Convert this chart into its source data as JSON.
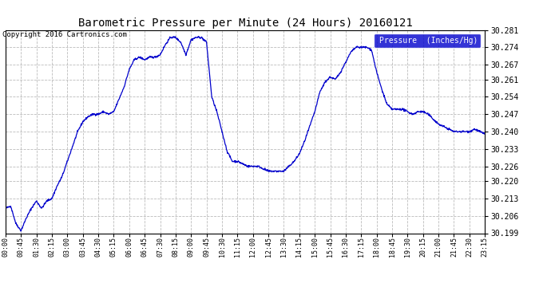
{
  "title": "Barometric Pressure per Minute (24 Hours) 20160121",
  "copyright": "Copyright 2016 Cartronics.com",
  "legend_label": "Pressure  (Inches/Hg)",
  "ylabel_ticks": [
    30.199,
    30.206,
    30.213,
    30.22,
    30.226,
    30.233,
    30.24,
    30.247,
    30.254,
    30.261,
    30.267,
    30.274,
    30.281
  ],
  "ylim": [
    30.199,
    30.281
  ],
  "line_color": "#0000cc",
  "bg_color": "#ffffff",
  "grid_color": "#bbbbbb",
  "title_color": "#000000",
  "copyright_color": "#000000",
  "legend_bg": "#0000cc",
  "legend_text_color": "#ffffff",
  "x_tick_interval_minutes": 45,
  "total_minutes": 1395,
  "keypoints": [
    [
      0,
      30.209
    ],
    [
      15,
      30.21
    ],
    [
      30,
      30.203
    ],
    [
      45,
      30.2
    ],
    [
      60,
      30.205
    ],
    [
      75,
      30.209
    ],
    [
      90,
      30.212
    ],
    [
      105,
      30.209
    ],
    [
      120,
      30.212
    ],
    [
      135,
      30.213
    ],
    [
      150,
      30.218
    ],
    [
      165,
      30.222
    ],
    [
      180,
      30.228
    ],
    [
      195,
      30.234
    ],
    [
      210,
      30.24
    ],
    [
      225,
      30.244
    ],
    [
      240,
      30.246
    ],
    [
      255,
      30.247
    ],
    [
      270,
      30.247
    ],
    [
      285,
      30.248
    ],
    [
      300,
      30.247
    ],
    [
      315,
      30.248
    ],
    [
      330,
      30.253
    ],
    [
      345,
      30.258
    ],
    [
      360,
      30.265
    ],
    [
      375,
      30.269
    ],
    [
      390,
      30.27
    ],
    [
      405,
      30.269
    ],
    [
      420,
      30.27
    ],
    [
      435,
      30.27
    ],
    [
      450,
      30.271
    ],
    [
      465,
      30.275
    ],
    [
      480,
      30.278
    ],
    [
      495,
      30.278
    ],
    [
      510,
      30.276
    ],
    [
      525,
      30.271
    ],
    [
      540,
      30.277
    ],
    [
      555,
      30.278
    ],
    [
      570,
      30.278
    ],
    [
      585,
      30.276
    ],
    [
      600,
      30.254
    ],
    [
      615,
      30.248
    ],
    [
      630,
      30.24
    ],
    [
      645,
      30.232
    ],
    [
      660,
      30.228
    ],
    [
      675,
      30.228
    ],
    [
      690,
      30.227
    ],
    [
      705,
      30.226
    ],
    [
      720,
      30.226
    ],
    [
      735,
      30.226
    ],
    [
      750,
      30.225
    ],
    [
      765,
      30.224
    ],
    [
      780,
      30.224
    ],
    [
      795,
      30.224
    ],
    [
      810,
      30.224
    ],
    [
      825,
      30.226
    ],
    [
      840,
      30.228
    ],
    [
      855,
      30.231
    ],
    [
      870,
      30.236
    ],
    [
      885,
      30.242
    ],
    [
      900,
      30.248
    ],
    [
      915,
      30.256
    ],
    [
      930,
      30.26
    ],
    [
      945,
      30.262
    ],
    [
      960,
      30.261
    ],
    [
      975,
      30.264
    ],
    [
      990,
      30.268
    ],
    [
      1005,
      30.272
    ],
    [
      1020,
      30.274
    ],
    [
      1035,
      30.274
    ],
    [
      1050,
      30.274
    ],
    [
      1065,
      30.273
    ],
    [
      1080,
      30.264
    ],
    [
      1095,
      30.257
    ],
    [
      1110,
      30.251
    ],
    [
      1125,
      30.249
    ],
    [
      1140,
      30.249
    ],
    [
      1155,
      30.249
    ],
    [
      1170,
      30.248
    ],
    [
      1185,
      30.247
    ],
    [
      1200,
      30.248
    ],
    [
      1215,
      30.248
    ],
    [
      1230,
      30.247
    ],
    [
      1245,
      30.245
    ],
    [
      1260,
      30.243
    ],
    [
      1275,
      30.242
    ],
    [
      1290,
      30.241
    ],
    [
      1305,
      30.24
    ],
    [
      1320,
      30.24
    ],
    [
      1335,
      30.24
    ],
    [
      1350,
      30.24
    ],
    [
      1365,
      30.241
    ],
    [
      1380,
      30.24
    ],
    [
      1395,
      30.239
    ]
  ]
}
